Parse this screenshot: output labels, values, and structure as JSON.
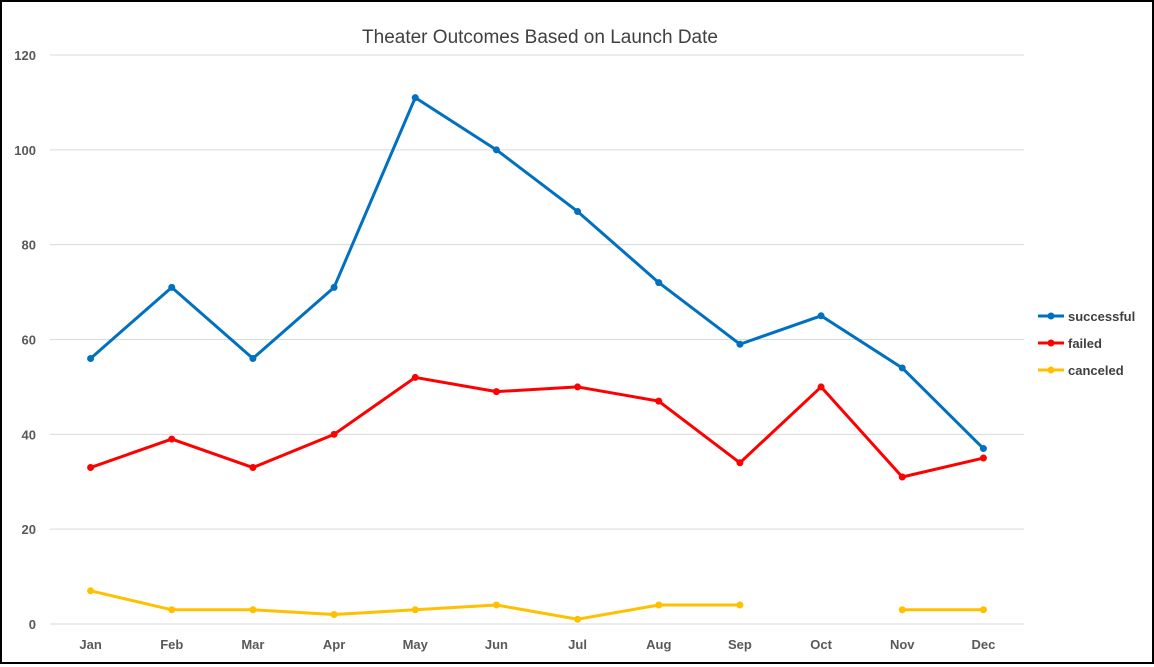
{
  "chart_data": {
    "type": "line",
    "title": "Theater Outcomes Based on Launch Date",
    "xlabel": "",
    "ylabel": "",
    "categories": [
      "Jan",
      "Feb",
      "Mar",
      "Apr",
      "May",
      "Jun",
      "Jul",
      "Aug",
      "Sep",
      "Oct",
      "Nov",
      "Dec"
    ],
    "ylim": [
      0,
      120
    ],
    "yticks": [
      0,
      20,
      40,
      60,
      80,
      100,
      120
    ],
    "grid": true,
    "legend_position": "right",
    "series": [
      {
        "name": "successful",
        "color": "#0070c0",
        "values": [
          56,
          71,
          56,
          71,
          111,
          100,
          87,
          72,
          59,
          65,
          54,
          37
        ]
      },
      {
        "name": "failed",
        "color": "#ff0000",
        "values": [
          33,
          39,
          33,
          40,
          52,
          49,
          50,
          47,
          34,
          50,
          31,
          35
        ]
      },
      {
        "name": "canceled",
        "color": "#ffc000",
        "values": [
          7,
          3,
          3,
          2,
          3,
          4,
          1,
          4,
          4,
          null,
          3,
          3
        ]
      }
    ]
  }
}
